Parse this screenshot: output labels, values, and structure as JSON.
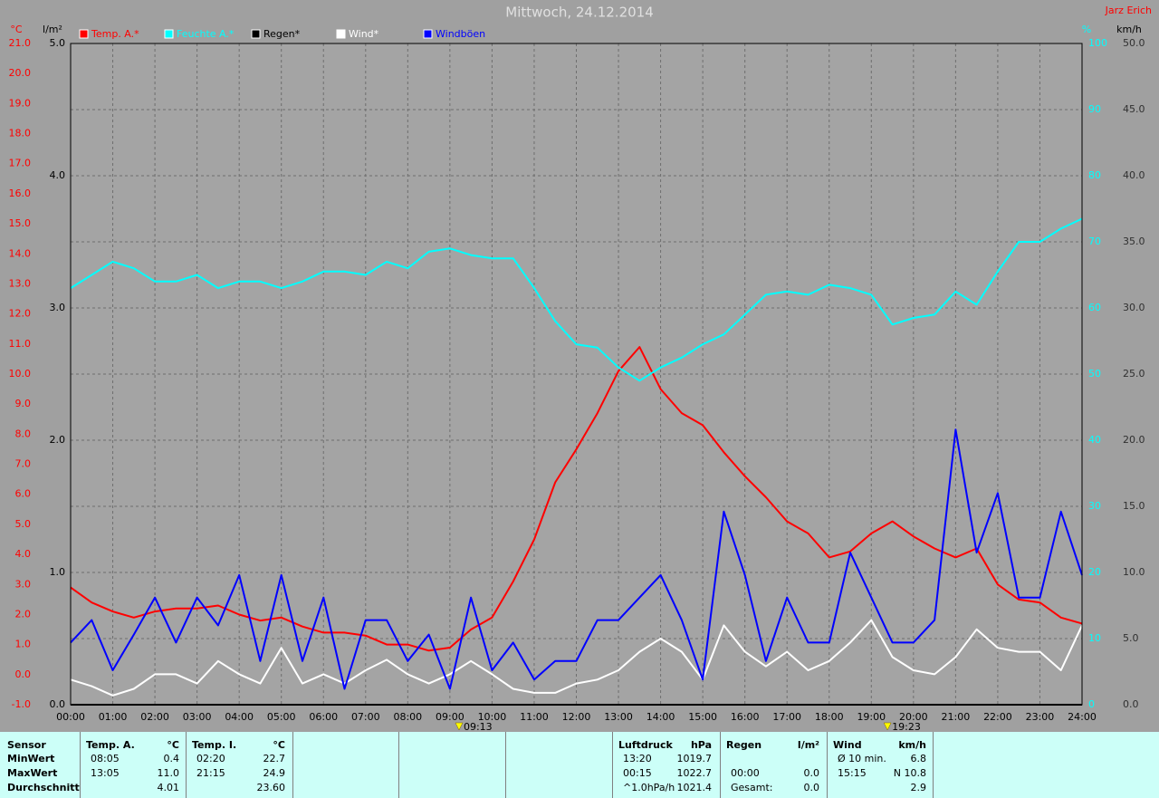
{
  "chart_data": {
    "type": "line",
    "title": "Mittwoch, 24.12.2014",
    "author": "Jarz Erich",
    "axis_units": {
      "y": "°C",
      "y2": "l/m²",
      "y3": "%",
      "y4": "km/h"
    },
    "x": [
      0,
      0.5,
      1,
      1.5,
      2,
      2.5,
      3,
      3.5,
      4,
      4.5,
      5,
      5.5,
      6,
      6.5,
      7,
      7.5,
      8,
      8.5,
      9,
      9.5,
      10,
      10.5,
      11,
      11.5,
      12,
      12.5,
      13,
      13.5,
      14,
      14.5,
      15,
      15.5,
      16,
      16.5,
      17,
      17.5,
      18,
      18.5,
      19,
      19.5,
      20,
      20.5,
      21,
      21.5,
      22,
      22.5,
      23,
      23.5,
      24
    ],
    "xlim": [
      0,
      24
    ],
    "xticks": [
      {
        "value": 0,
        "label": "00:00"
      },
      {
        "value": 1,
        "label": "01:00"
      },
      {
        "value": 2,
        "label": "02:00"
      },
      {
        "value": 3,
        "label": "03:00"
      },
      {
        "value": 4,
        "label": "04:00"
      },
      {
        "value": 5,
        "label": "05:00"
      },
      {
        "value": 6,
        "label": "06:00"
      },
      {
        "value": 7,
        "label": "07:00"
      },
      {
        "value": 8,
        "label": "08:00"
      },
      {
        "value": 9,
        "label": "09:00"
      },
      {
        "value": 10,
        "label": "10:00"
      },
      {
        "value": 11,
        "label": "11:00"
      },
      {
        "value": 12,
        "label": "12:00"
      },
      {
        "value": 13,
        "label": "13:00"
      },
      {
        "value": 14,
        "label": "14:00"
      },
      {
        "value": 15,
        "label": "15:00"
      },
      {
        "value": 16,
        "label": "16:00"
      },
      {
        "value": 17,
        "label": "17:00"
      },
      {
        "value": 18,
        "label": "18:00"
      },
      {
        "value": 19,
        "label": "19:00"
      },
      {
        "value": 20,
        "label": "20:00"
      },
      {
        "value": 21,
        "label": "21:00"
      },
      {
        "value": 22,
        "label": "22:00"
      },
      {
        "value": 23,
        "label": "23:00"
      },
      {
        "value": 24,
        "label": "24:00"
      }
    ],
    "ylim": [
      -1,
      21
    ],
    "yticks": [
      {
        "value": -1,
        "label": "-1.0"
      },
      {
        "value": 0,
        "label": "0.0"
      },
      {
        "value": 1,
        "label": "1.0"
      },
      {
        "value": 2,
        "label": "2.0"
      },
      {
        "value": 3,
        "label": "3.0"
      },
      {
        "value": 4,
        "label": "4.0"
      },
      {
        "value": 5,
        "label": "5.0"
      },
      {
        "value": 6,
        "label": "6.0"
      },
      {
        "value": 7,
        "label": "7.0"
      },
      {
        "value": 8,
        "label": "8.0"
      },
      {
        "value": 9,
        "label": "9.0"
      },
      {
        "value": 10,
        "label": "10.0"
      },
      {
        "value": 11,
        "label": "11.0"
      },
      {
        "value": 12,
        "label": "12.0"
      },
      {
        "value": 13,
        "label": "13.0"
      },
      {
        "value": 14,
        "label": "14.0"
      },
      {
        "value": 15,
        "label": "15.0"
      },
      {
        "value": 16,
        "label": "16.0"
      },
      {
        "value": 17,
        "label": "17.0"
      },
      {
        "value": 18,
        "label": "18.0"
      },
      {
        "value": 19,
        "label": "19.0"
      },
      {
        "value": 20,
        "label": "20.0"
      },
      {
        "value": 21,
        "label": "21.0"
      }
    ],
    "y2lim": [
      0,
      5
    ],
    "y2ticks": [
      {
        "value": 0,
        "label": "0.0"
      },
      {
        "value": 1,
        "label": "1.0"
      },
      {
        "value": 2,
        "label": "2.0"
      },
      {
        "value": 3,
        "label": "3.0"
      },
      {
        "value": 4,
        "label": "4.0"
      },
      {
        "value": 5,
        "label": "5.0"
      }
    ],
    "y3lim": [
      0,
      100
    ],
    "y3ticks": [
      0,
      10,
      20,
      30,
      40,
      50,
      60,
      70,
      80,
      90,
      100
    ],
    "y4lim": [
      0,
      50
    ],
    "y4ticks": [
      {
        "value": 0,
        "label": "0.0"
      },
      {
        "value": 5,
        "label": "5.0"
      },
      {
        "value": 10,
        "label": "10.0"
      },
      {
        "value": 15,
        "label": "15.0"
      },
      {
        "value": 20,
        "label": "20.0"
      },
      {
        "value": 25,
        "label": "25.0"
      },
      {
        "value": 30,
        "label": "30.0"
      },
      {
        "value": 35,
        "label": "35.0"
      },
      {
        "value": 40,
        "label": "40.0"
      },
      {
        "value": 45,
        "label": "45.0"
      },
      {
        "value": 50,
        "label": "50.0"
      }
    ],
    "grid": true,
    "annotations": [
      {
        "x": 9.2167,
        "label": "09:13"
      },
      {
        "x": 19.3833,
        "label": "19:23"
      }
    ],
    "series": [
      {
        "name": "Temp. A.*",
        "color": "#ff0000",
        "axis": "y",
        "values": [
          2.9,
          2.4,
          2.1,
          1.9,
          2.1,
          2.2,
          2.2,
          2.3,
          2.0,
          1.8,
          1.9,
          1.6,
          1.4,
          1.4,
          1.3,
          1.0,
          1.0,
          0.8,
          0.9,
          1.5,
          1.9,
          3.1,
          4.5,
          6.4,
          7.5,
          8.7,
          10.1,
          10.9,
          9.5,
          8.7,
          8.3,
          7.4,
          6.6,
          5.9,
          5.1,
          4.7,
          3.9,
          4.1,
          4.7,
          5.1,
          4.6,
          4.2,
          3.9,
          4.2,
          3.0,
          2.5,
          2.4,
          1.9,
          1.7
        ]
      },
      {
        "name": "Feuchte A.*",
        "color": "#00ffff",
        "axis": "y3",
        "values": [
          63,
          65,
          67,
          66,
          64,
          64,
          65,
          63,
          64,
          64,
          63,
          64,
          65.5,
          65.5,
          65,
          67,
          66,
          68.5,
          69,
          68,
          67.5,
          67.5,
          63,
          58,
          54.5,
          54,
          51,
          49,
          51,
          52.5,
          54.5,
          56,
          59,
          62,
          62.5,
          62,
          63.5,
          63,
          62,
          57.5,
          58.5,
          59,
          62.5,
          60.5,
          65.5,
          70,
          70,
          72,
          73.5
        ]
      },
      {
        "name": "Regen*",
        "color": "#000000",
        "axis": "y2",
        "values": [
          0,
          0,
          0,
          0,
          0,
          0,
          0,
          0,
          0,
          0,
          0,
          0,
          0,
          0,
          0,
          0,
          0,
          0,
          0,
          0,
          0,
          0,
          0,
          0,
          0,
          0,
          0,
          0,
          0,
          0,
          0,
          0,
          0,
          0,
          0,
          0,
          0,
          0,
          0,
          0,
          0,
          0,
          0,
          0,
          0,
          0,
          0,
          0,
          0
        ]
      },
      {
        "name": "Wind*",
        "color": "#ffffff",
        "axis": "y4",
        "values": [
          1.9,
          1.4,
          0.7,
          1.2,
          2.3,
          2.3,
          1.6,
          3.3,
          2.3,
          1.6,
          4.3,
          1.6,
          2.3,
          1.6,
          2.6,
          3.4,
          2.3,
          1.6,
          2.3,
          3.3,
          2.3,
          1.2,
          0.9,
          0.9,
          1.6,
          1.9,
          2.6,
          4.0,
          5.0,
          4.0,
          1.9,
          6.0,
          4.0,
          2.9,
          4.0,
          2.6,
          3.3,
          4.7,
          6.4,
          3.6,
          2.6,
          2.3,
          3.6,
          5.7,
          4.3,
          4.0,
          4.0,
          2.6,
          6.0
        ]
      },
      {
        "name": "Windböen",
        "color": "#0000ff",
        "axis": "y4",
        "values": [
          4.7,
          6.4,
          2.6,
          5.3,
          8.1,
          4.7,
          8.1,
          6.0,
          9.8,
          3.3,
          9.8,
          3.3,
          8.1,
          1.2,
          6.4,
          6.4,
          3.3,
          5.3,
          1.2,
          8.1,
          2.6,
          4.7,
          1.9,
          3.3,
          3.3,
          6.4,
          6.4,
          8.1,
          9.8,
          6.4,
          1.9,
          14.6,
          9.8,
          3.3,
          8.1,
          4.7,
          4.7,
          11.5,
          8.1,
          4.7,
          4.7,
          6.4,
          20.8,
          11.5,
          16.0,
          8.1,
          8.1,
          14.6,
          9.8
        ]
      }
    ]
  },
  "stats_table": {
    "row_labels": [
      "Sensor",
      "MinWert",
      "MaxWert",
      "Durchschnitt"
    ],
    "groups": [
      {
        "title": "Temp. A.",
        "unit": "°C",
        "rows": [
          {
            "time": "08:05",
            "value": "0.4"
          },
          {
            "time": "13:05",
            "value": "11.0"
          },
          {
            "value": "4.01"
          }
        ]
      },
      {
        "title": "Temp. I.",
        "unit": "°C",
        "rows": [
          {
            "time": "02:20",
            "value": "22.7"
          },
          {
            "time": "21:15",
            "value": "24.9"
          },
          {
            "value": "23.60"
          }
        ]
      },
      {
        "title": "Luftdruck",
        "unit": "hPa",
        "rows": [
          {
            "time": "13:20",
            "value": "1019.7"
          },
          {
            "time": "00:15",
            "value": "1022.7"
          },
          {
            "time": "^1.0hPa/h",
            "value": "1021.4"
          }
        ]
      },
      {
        "title": "Regen",
        "unit": "l/m²",
        "rows": [
          null,
          {
            "time": "00:00",
            "value": "0.0"
          },
          {
            "time": "Gesamt:",
            "value": "0.0"
          }
        ]
      },
      {
        "title": "Wind",
        "unit": "km/h",
        "rows": [
          {
            "time": "Ø 10 min.",
            "value": "6.8"
          },
          {
            "time": "15:15",
            "value": "N 10.8"
          },
          {
            "value": "2.9"
          }
        ]
      }
    ]
  }
}
